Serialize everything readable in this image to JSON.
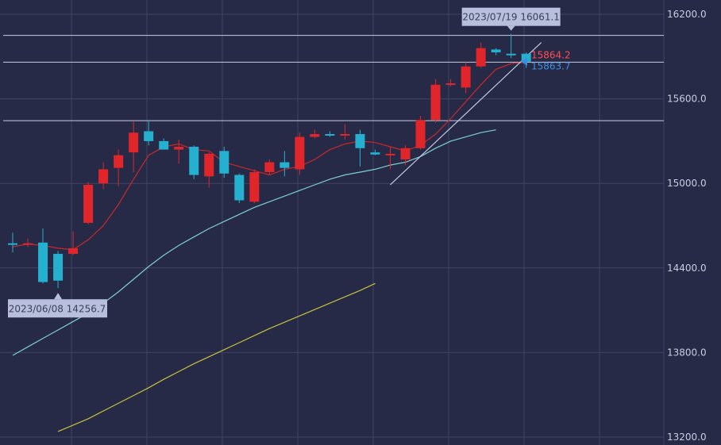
{
  "chart_data": {
    "type": "candlestick",
    "y_axis": {
      "ylim": [
        13200,
        16200
      ],
      "ticks": [
        "16200.0",
        "15600.0",
        "15000.0",
        "14400.0",
        "13800.0",
        "13200.0"
      ],
      "tick_values": [
        16200,
        15600,
        15000,
        14400,
        13800,
        13200
      ],
      "position": "right"
    },
    "grid": true,
    "colors": {
      "up": "#e0262b",
      "down": "#25b0cf",
      "background": "#262a47",
      "grid": "#3f4464",
      "ma_short": "#c8282c",
      "ma_mid": "#7ecfcf",
      "ma_long": "#c8c13a",
      "trendline": "#c4c8e4",
      "hline": "#c8cce0",
      "label_bg": "#b8bfdc",
      "last_up": "#ff4d4f",
      "last_down": "#3b8fe0"
    },
    "candles": [
      {
        "o": 14575,
        "h": 14650,
        "l": 14510,
        "c": 14565
      },
      {
        "o": 14570,
        "h": 14610,
        "l": 14550,
        "c": 14575
      },
      {
        "o": 14580,
        "h": 14680,
        "l": 14290,
        "c": 14300
      },
      {
        "o": 14500,
        "h": 14520,
        "l": 14256.7,
        "c": 14310
      },
      {
        "o": 14500,
        "h": 14660,
        "l": 14490,
        "c": 14540
      },
      {
        "o": 14720,
        "h": 15010,
        "l": 14710,
        "c": 14990
      },
      {
        "o": 15000,
        "h": 15150,
        "l": 14960,
        "c": 15100
      },
      {
        "o": 15110,
        "h": 15240,
        "l": 14980,
        "c": 15200
      },
      {
        "o": 15220,
        "h": 15440,
        "l": 15080,
        "c": 15360
      },
      {
        "o": 15370,
        "h": 15450,
        "l": 15270,
        "c": 15300
      },
      {
        "o": 15300,
        "h": 15320,
        "l": 15240,
        "c": 15240
      },
      {
        "o": 15240,
        "h": 15310,
        "l": 15140,
        "c": 15260
      },
      {
        "o": 15260,
        "h": 15270,
        "l": 15030,
        "c": 15060
      },
      {
        "o": 15050,
        "h": 15220,
        "l": 14970,
        "c": 15210
      },
      {
        "o": 15230,
        "h": 15260,
        "l": 15040,
        "c": 15070
      },
      {
        "o": 15060,
        "h": 15070,
        "l": 14860,
        "c": 14880
      },
      {
        "o": 14870,
        "h": 15100,
        "l": 14860,
        "c": 15080
      },
      {
        "o": 15080,
        "h": 15170,
        "l": 15060,
        "c": 15150
      },
      {
        "o": 15150,
        "h": 15230,
        "l": 15050,
        "c": 15110
      },
      {
        "o": 15100,
        "h": 15360,
        "l": 15060,
        "c": 15330
      },
      {
        "o": 15330,
        "h": 15380,
        "l": 15320,
        "c": 15350
      },
      {
        "o": 15350,
        "h": 15370,
        "l": 15330,
        "c": 15340
      },
      {
        "o": 15340,
        "h": 15420,
        "l": 15310,
        "c": 15350
      },
      {
        "o": 15350,
        "h": 15380,
        "l": 15120,
        "c": 15250
      },
      {
        "o": 15220,
        "h": 15240,
        "l": 15200,
        "c": 15205
      },
      {
        "o": 15200,
        "h": 15260,
        "l": 15100,
        "c": 15210
      },
      {
        "o": 15170,
        "h": 15270,
        "l": 15130,
        "c": 15250
      },
      {
        "o": 15250,
        "h": 15480,
        "l": 15240,
        "c": 15450
      },
      {
        "o": 15450,
        "h": 15740,
        "l": 15430,
        "c": 15700
      },
      {
        "o": 15700,
        "h": 15740,
        "l": 15690,
        "c": 15710
      },
      {
        "o": 15680,
        "h": 15860,
        "l": 15640,
        "c": 15830
      },
      {
        "o": 15830,
        "h": 16000,
        "l": 15820,
        "c": 15960
      },
      {
        "o": 15950,
        "h": 15960,
        "l": 15910,
        "c": 15930
      },
      {
        "o": 15920,
        "h": 16061.1,
        "l": 15890,
        "c": 15910
      },
      {
        "o": 15920,
        "h": 15930,
        "l": 15820,
        "c": 15863.7
      }
    ],
    "ma_short": [
      14550,
      14570,
      14560,
      14540,
      14530,
      14600,
      14700,
      14850,
      15030,
      15200,
      15260,
      15280,
      15240,
      15230,
      15150,
      15120,
      15090,
      15060,
      15100,
      15120,
      15170,
      15240,
      15280,
      15300,
      15290,
      15260,
      15230,
      15270,
      15350,
      15460,
      15580,
      15700,
      15810,
      15850,
      15860
    ],
    "ma_mid": [
      13780,
      13840,
      13900,
      13960,
      14020,
      14080,
      14150,
      14230,
      14320,
      14410,
      14490,
      14560,
      14620,
      14680,
      14730,
      14780,
      14830,
      14870,
      14910,
      14950,
      14990,
      15030,
      15060,
      15080,
      15100,
      15130,
      15150,
      15190,
      15250,
      15300,
      15330,
      15360,
      15380
    ],
    "ma_long": [
      13240,
      13285,
      13330,
      13385,
      13440,
      13495,
      13550,
      13610,
      13665,
      13720,
      13770,
      13820,
      13870,
      13920,
      13970,
      14015,
      14060,
      14105,
      14150,
      14195,
      14240,
      14290
    ],
    "trendline": {
      "from": [
        25,
        14990
      ],
      "to": [
        35,
        16000
      ]
    },
    "hlines": [
      16050,
      15860,
      15445
    ]
  },
  "annotations": {
    "high": {
      "text": "2023/07/19 16061.1",
      "price": 16061.1,
      "bar": 33
    },
    "low": {
      "text": "2023/06/08 14256.7",
      "price": 14256.7,
      "bar": 3
    },
    "last_up": {
      "text": "15864.2",
      "price": 15864.2
    },
    "last_down": {
      "text": "15863.7",
      "price": 15863.7
    }
  }
}
